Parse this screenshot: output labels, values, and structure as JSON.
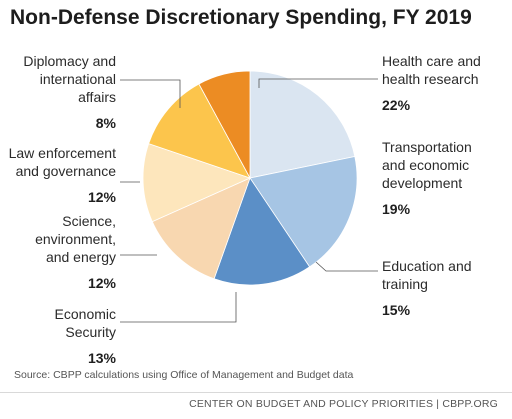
{
  "title": "Non-Defense Discretionary Spending, FY 2019",
  "source": "Source: CBPP calculations using Office of Management and Budget data",
  "footer": "CENTER ON BUDGET AND POLICY PRIORITIES | CBPP.ORG",
  "chart_data": {
    "type": "pie",
    "start_angle_deg": 0,
    "direction": "clockwise",
    "slices": [
      {
        "lines": [
          "Health care and",
          "health research"
        ],
        "value": 22,
        "label": "22%",
        "color": "#dae5f1"
      },
      {
        "lines": [
          "Transportation",
          "and economic",
          "development"
        ],
        "value": 19,
        "label": "19%",
        "color": "#a6c5e4"
      },
      {
        "lines": [
          "Education and",
          "training"
        ],
        "value": 15,
        "label": "15%",
        "color": "#5b8fc7"
      },
      {
        "lines": [
          "Economic",
          "Security"
        ],
        "value": 13,
        "label": "13%",
        "color": "#f8d7b0"
      },
      {
        "lines": [
          "Science,",
          "environment,",
          "and energy"
        ],
        "value": 12,
        "label": "12%",
        "color": "#fde6bc"
      },
      {
        "lines": [
          "Law enforcement",
          "and governance"
        ],
        "value": 12,
        "label": "12%",
        "color": "#fcc54c"
      },
      {
        "lines": [
          "Diplomacy and",
          "international",
          "affairs"
        ],
        "value": 8,
        "label": "8%",
        "color": "#ec8c23"
      }
    ]
  }
}
